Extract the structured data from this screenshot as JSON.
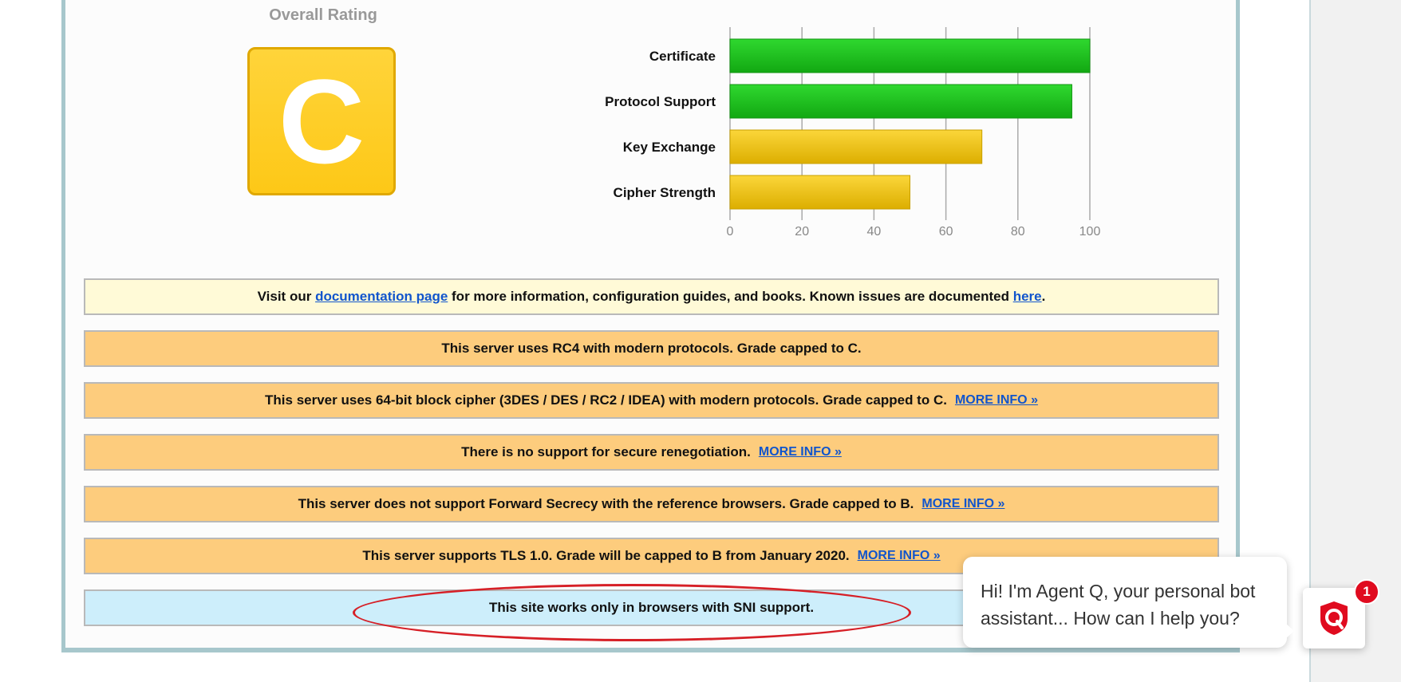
{
  "overall_rating": {
    "title": "Overall Rating",
    "grade": "C"
  },
  "chart_data": {
    "type": "bar",
    "orientation": "horizontal",
    "categories": [
      "Certificate",
      "Protocol Support",
      "Key Exchange",
      "Cipher Strength"
    ],
    "values": [
      100,
      95,
      70,
      50
    ],
    "colors": [
      "#1fbf1f",
      "#1fbf1f",
      "#f0c010",
      "#f0c010"
    ],
    "xlim": [
      0,
      100
    ],
    "xticks": [
      0,
      20,
      40,
      60,
      80,
      100
    ],
    "grid": true
  },
  "banners": {
    "docs": {
      "pre": "Visit our ",
      "link1": "documentation page",
      "mid": " for more information, configuration guides, and books. Known issues are documented ",
      "link2": "here",
      "post": "."
    },
    "rc4": {
      "text": "This server uses RC4 with modern protocols. Grade capped to C."
    },
    "cipher64": {
      "text": "This server uses 64-bit block cipher (3DES / DES / RC2 / IDEA) with modern protocols. Grade capped to C.",
      "link": "MORE INFO »"
    },
    "renegotiation": {
      "text": "There is no support for secure renegotiation.",
      "link": "MORE INFO »"
    },
    "forward_secrecy": {
      "text": "This server does not support Forward Secrecy with the reference browsers. Grade capped to B.",
      "link": "MORE INFO »"
    },
    "tls10": {
      "text": "This server supports TLS 1.0. Grade will be capped to B from January 2020.",
      "link": "MORE INFO »"
    },
    "sni": {
      "text": "This site works only in browsers with SNI support."
    }
  },
  "chat": {
    "message": "Hi! I'm Agent Q, your personal bot assistant... How can I help you?",
    "badge_count": "1",
    "accent": "#e00b1f"
  }
}
